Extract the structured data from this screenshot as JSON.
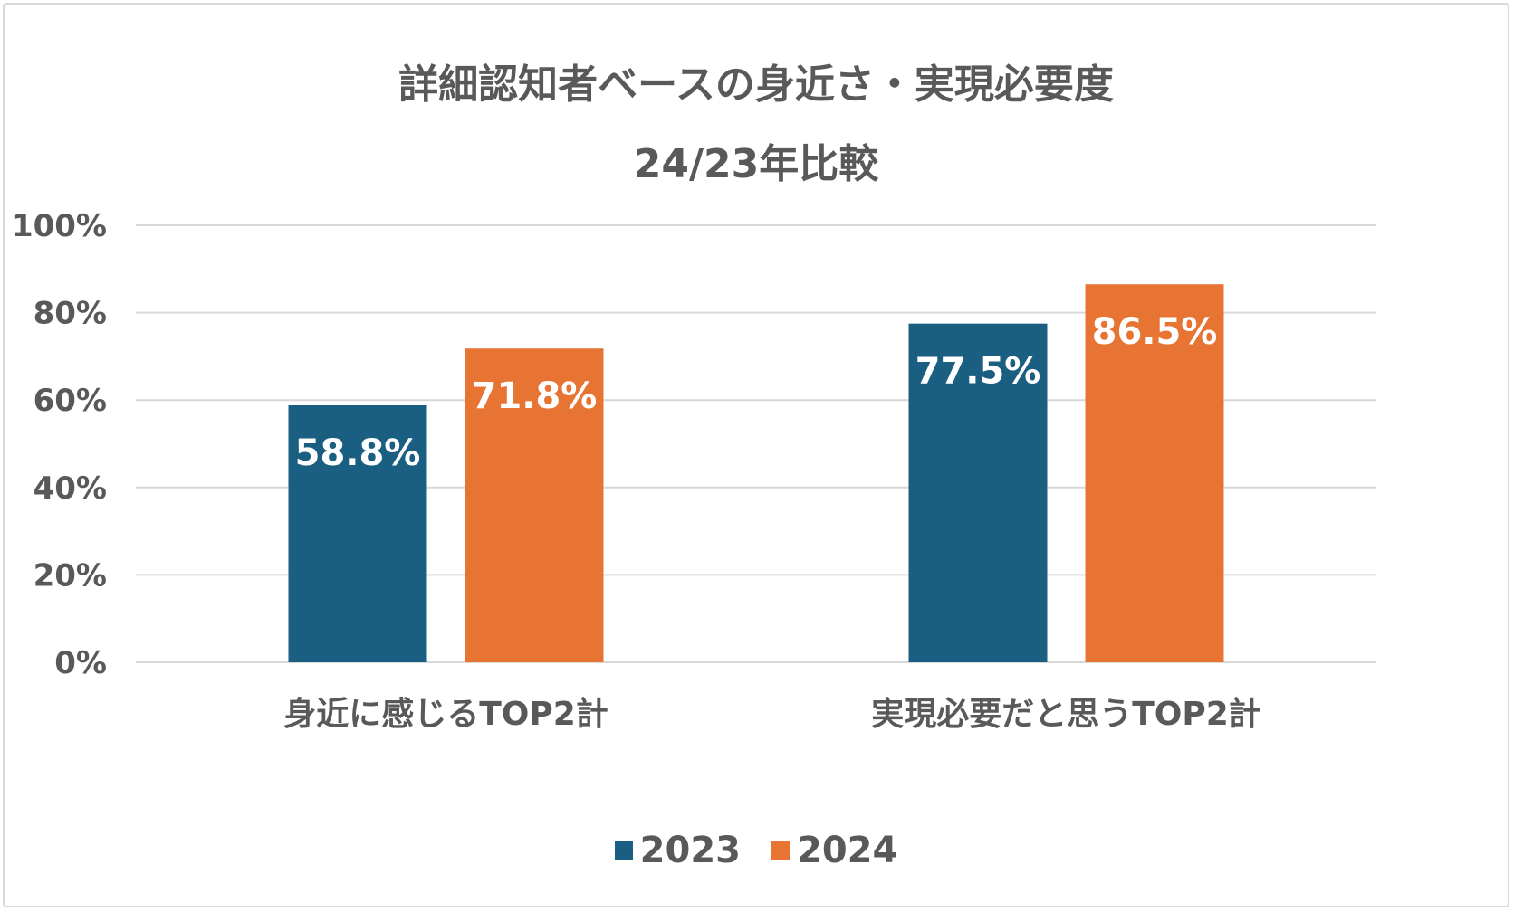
{
  "chart_data": {
    "type": "bar",
    "title": "詳細認知者ベースの身近さ・実現必要度",
    "subtitle": "24/23年比較",
    "categories": [
      "身近に感じるTOP2計",
      "実現必要だと思うTOP2計"
    ],
    "series": [
      {
        "name": "2023",
        "color": "#1a5e82",
        "values": [
          58.8,
          77.5
        ],
        "labels": [
          "58.8%",
          "77.5%"
        ]
      },
      {
        "name": "2024",
        "color": "#e87434",
        "values": [
          71.8,
          86.5
        ],
        "labels": [
          "71.8%",
          "86.5%"
        ]
      }
    ],
    "ylim": [
      0,
      100
    ],
    "yticks": [
      0,
      20,
      40,
      60,
      80,
      100
    ],
    "ytick_labels": [
      "0%",
      "20%",
      "40%",
      "60%",
      "80%",
      "100%"
    ],
    "xlabel": "",
    "ylabel": "",
    "grid": true,
    "legend_position": "bottom-center"
  }
}
